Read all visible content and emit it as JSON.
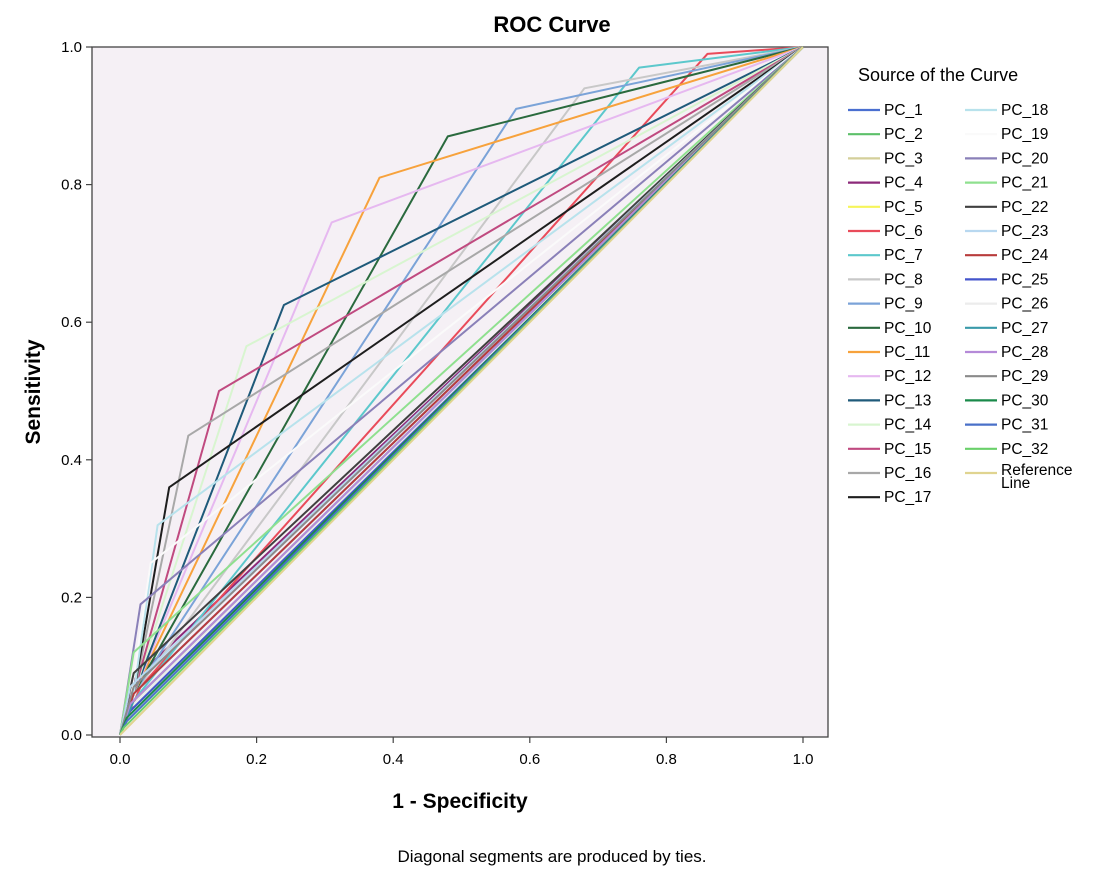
{
  "chart_data": {
    "type": "line",
    "title": "ROC Curve",
    "xlabel": "1 - Specificity",
    "ylabel": "Sensitivity",
    "xlim": [
      0,
      1
    ],
    "ylim": [
      0,
      1
    ],
    "x_ticks": [
      "0.0",
      "0.2",
      "0.4",
      "0.6",
      "0.8",
      "1.0"
    ],
    "y_ticks": [
      "0.0",
      "0.2",
      "0.4",
      "0.6",
      "0.8",
      "1.0"
    ],
    "grid": false,
    "plot_background": "#f5f0f5",
    "legend_title": "Source of the Curve",
    "legend_position": "right",
    "footnote": "Diagonal segments are produced by ties.",
    "series": [
      {
        "name": "PC_1",
        "color": "#4a6fd0",
        "points": [
          [
            0,
            0
          ],
          [
            0.02,
            0.06
          ],
          [
            1,
            1
          ]
        ]
      },
      {
        "name": "PC_2",
        "color": "#5dc06a",
        "points": [
          [
            0,
            0
          ],
          [
            0.01,
            0.03
          ],
          [
            1,
            1
          ]
        ]
      },
      {
        "name": "PC_3",
        "color": "#d4cf9a",
        "points": [
          [
            0,
            0
          ],
          [
            0.02,
            0.05
          ],
          [
            1,
            1
          ]
        ]
      },
      {
        "name": "PC_4",
        "color": "#8c2a7a",
        "points": [
          [
            0,
            0
          ],
          [
            0.02,
            0.08
          ],
          [
            1,
            1
          ]
        ]
      },
      {
        "name": "PC_5",
        "color": "#f6f55a",
        "points": [
          [
            0,
            0
          ],
          [
            0.01,
            0.04
          ],
          [
            1,
            1
          ]
        ]
      },
      {
        "name": "PC_6",
        "color": "#e94b5a",
        "points": [
          [
            0,
            0
          ],
          [
            0.03,
            0.07
          ],
          [
            0.86,
            0.99
          ],
          [
            1,
            1
          ]
        ]
      },
      {
        "name": "PC_7",
        "color": "#5cc8cc",
        "points": [
          [
            0,
            0
          ],
          [
            0.02,
            0.05
          ],
          [
            0.76,
            0.97
          ],
          [
            1,
            1
          ]
        ]
      },
      {
        "name": "PC_8",
        "color": "#c8c8c8",
        "points": [
          [
            0,
            0
          ],
          [
            0.02,
            0.06
          ],
          [
            0.68,
            0.94
          ],
          [
            1,
            1
          ]
        ]
      },
      {
        "name": "PC_9",
        "color": "#7ba3d8",
        "points": [
          [
            0,
            0
          ],
          [
            0.02,
            0.06
          ],
          [
            0.58,
            0.91
          ],
          [
            1,
            1
          ]
        ]
      },
      {
        "name": "PC_10",
        "color": "#2a6a3e",
        "points": [
          [
            0,
            0
          ],
          [
            0.02,
            0.06
          ],
          [
            0.48,
            0.87
          ],
          [
            1,
            1
          ]
        ]
      },
      {
        "name": "PC_11",
        "color": "#f7a23c",
        "points": [
          [
            0,
            0
          ],
          [
            0.02,
            0.06
          ],
          [
            0.38,
            0.81
          ],
          [
            1,
            1
          ]
        ]
      },
      {
        "name": "PC_12",
        "color": "#e6b8f0",
        "points": [
          [
            0,
            0
          ],
          [
            0.02,
            0.06
          ],
          [
            0.31,
            0.745
          ],
          [
            1,
            1
          ]
        ]
      },
      {
        "name": "PC_13",
        "color": "#1f5a7a",
        "points": [
          [
            0,
            0
          ],
          [
            0.02,
            0.06
          ],
          [
            0.24,
            0.625
          ],
          [
            1,
            1
          ]
        ]
      },
      {
        "name": "PC_14",
        "color": "#d8f5d0",
        "points": [
          [
            0,
            0
          ],
          [
            0.02,
            0.06
          ],
          [
            0.185,
            0.565
          ],
          [
            1,
            1
          ]
        ]
      },
      {
        "name": "PC_15",
        "color": "#c04a80",
        "points": [
          [
            0,
            0
          ],
          [
            0.02,
            0.06
          ],
          [
            0.145,
            0.5
          ],
          [
            1,
            1
          ]
        ]
      },
      {
        "name": "PC_16",
        "color": "#a8a8a8",
        "points": [
          [
            0,
            0
          ],
          [
            0.02,
            0.06
          ],
          [
            0.1,
            0.435
          ],
          [
            1,
            1
          ]
        ]
      },
      {
        "name": "PC_17",
        "color": "#1e1e1e",
        "points": [
          [
            0,
            0
          ],
          [
            0.02,
            0.06
          ],
          [
            0.072,
            0.36
          ],
          [
            1,
            1
          ]
        ]
      },
      {
        "name": "PC_18",
        "color": "#b8e2ec",
        "points": [
          [
            0,
            0
          ],
          [
            0.02,
            0.06
          ],
          [
            0.055,
            0.305
          ],
          [
            1,
            1
          ]
        ]
      },
      {
        "name": "PC_19",
        "color": "#fafafa",
        "points": [
          [
            0,
            0
          ],
          [
            0.015,
            0.05
          ],
          [
            0.045,
            0.25
          ],
          [
            1,
            1
          ]
        ]
      },
      {
        "name": "PC_20",
        "color": "#8a80b8",
        "points": [
          [
            0,
            0
          ],
          [
            0.03,
            0.19
          ],
          [
            1,
            1
          ]
        ]
      },
      {
        "name": "PC_21",
        "color": "#8fe08f",
        "points": [
          [
            0,
            0
          ],
          [
            0.02,
            0.12
          ],
          [
            1,
            1
          ]
        ]
      },
      {
        "name": "PC_22",
        "color": "#404040",
        "points": [
          [
            0,
            0
          ],
          [
            0.02,
            0.09
          ],
          [
            1,
            1
          ]
        ]
      },
      {
        "name": "PC_23",
        "color": "#b8d8f0",
        "points": [
          [
            0,
            0
          ],
          [
            0.015,
            0.07
          ],
          [
            1,
            1
          ]
        ]
      },
      {
        "name": "PC_24",
        "color": "#b83c3c",
        "points": [
          [
            0,
            0
          ],
          [
            0.02,
            0.06
          ],
          [
            1,
            1
          ]
        ]
      },
      {
        "name": "PC_25",
        "color": "#4455cc",
        "points": [
          [
            0,
            0
          ],
          [
            0.01,
            0.03
          ],
          [
            1,
            1
          ]
        ]
      },
      {
        "name": "PC_26",
        "color": "#ececec",
        "points": [
          [
            0,
            0
          ],
          [
            0.015,
            0.04
          ],
          [
            1,
            1
          ]
        ]
      },
      {
        "name": "PC_27",
        "color": "#3a9aaa",
        "points": [
          [
            0,
            0
          ],
          [
            0.02,
            0.05
          ],
          [
            1,
            1
          ]
        ]
      },
      {
        "name": "PC_28",
        "color": "#b58ad8",
        "points": [
          [
            0,
            0
          ],
          [
            0.015,
            0.045
          ],
          [
            1,
            1
          ]
        ]
      },
      {
        "name": "PC_29",
        "color": "#8a8a8a",
        "points": [
          [
            0,
            0
          ],
          [
            0.02,
            0.07
          ],
          [
            1,
            1
          ]
        ]
      },
      {
        "name": "PC_30",
        "color": "#1a8a4a",
        "points": [
          [
            0,
            0
          ],
          [
            0.01,
            0.025
          ],
          [
            1,
            1
          ]
        ]
      },
      {
        "name": "PC_31",
        "color": "#4a70c8",
        "points": [
          [
            0,
            0
          ],
          [
            0.01,
            0.02
          ],
          [
            1,
            1
          ]
        ]
      },
      {
        "name": "PC_32",
        "color": "#6ad06a",
        "points": [
          [
            0,
            0
          ],
          [
            0.005,
            0.01
          ],
          [
            1,
            1
          ]
        ]
      },
      {
        "name": "Reference\nLine",
        "color": "#e0d490",
        "points": [
          [
            0,
            0
          ],
          [
            1,
            1
          ]
        ]
      }
    ]
  }
}
